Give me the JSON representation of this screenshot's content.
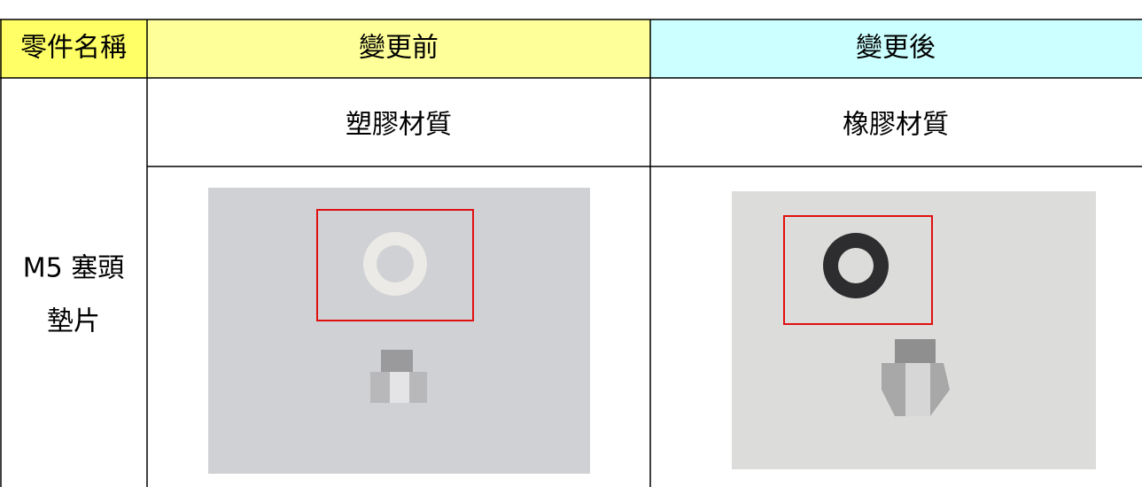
{
  "table": {
    "header": [
      "零件名稱",
      "變更前",
      "變更後"
    ],
    "part_name": [
      "M5 塞頭",
      "墊片"
    ],
    "materials": [
      "塑膠材質",
      "橡膠材質"
    ]
  }
}
